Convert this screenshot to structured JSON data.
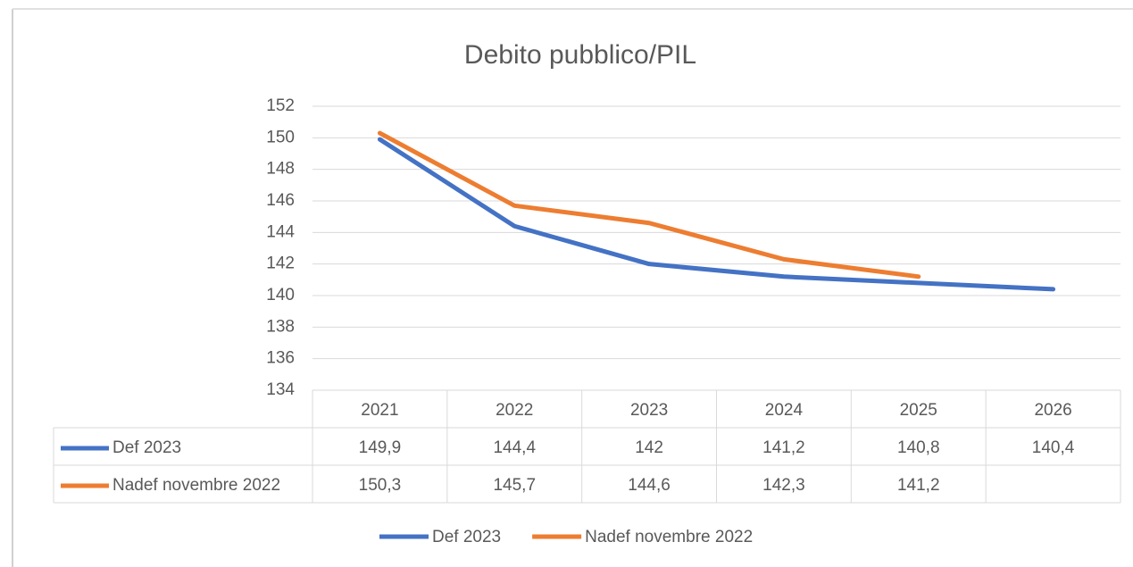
{
  "chart_data": {
    "type": "line",
    "title": "Debito pubblico/PIL",
    "categories": [
      "2021",
      "2022",
      "2023",
      "2024",
      "2025",
      "2026"
    ],
    "series": [
      {
        "name": "Def 2023",
        "color": "#4472c4",
        "values": [
          149.9,
          144.4,
          142,
          141.2,
          140.8,
          140.4
        ],
        "value_labels": [
          "149,9",
          "144,4",
          "142",
          "141,2",
          "140,8",
          "140,4"
        ]
      },
      {
        "name": "Nadef novembre 2022",
        "color": "#ed7d31",
        "values": [
          150.3,
          145.7,
          144.6,
          142.3,
          141.2,
          null
        ],
        "value_labels": [
          "150,3",
          "145,7",
          "144,6",
          "142,3",
          "141,2",
          null
        ]
      }
    ],
    "ylim": [
      134,
      152
    ],
    "yticks": [
      134,
      136,
      138,
      140,
      142,
      144,
      146,
      148,
      150,
      152
    ],
    "grid": true,
    "legend": "bottom"
  }
}
